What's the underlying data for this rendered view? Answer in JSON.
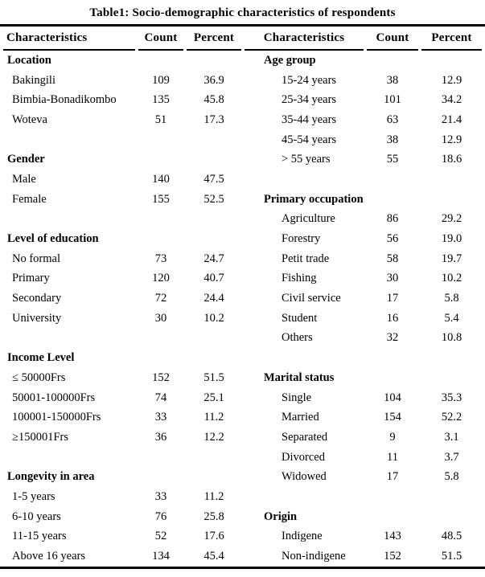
{
  "table": {
    "title": "Table1: Socio-demographic characteristics of respondents",
    "columns": [
      "Characteristics",
      "Count",
      "Percent",
      "Characteristics",
      "Count",
      "Percent"
    ],
    "left_sections": [
      {
        "header": "Location",
        "rows": [
          [
            "Bakingili",
            "109",
            "36.9"
          ],
          [
            "Bimbia-Bonadikombo",
            "135",
            "45.8"
          ],
          [
            "Woteva",
            "51",
            "17.3"
          ]
        ]
      },
      {
        "header": "Gender",
        "rows": [
          [
            "Male",
            "140",
            "47.5"
          ],
          [
            "Female",
            "155",
            "52.5"
          ]
        ]
      },
      {
        "header": "Level of education",
        "rows": [
          [
            "No formal",
            "73",
            "24.7"
          ],
          [
            "Primary",
            "120",
            "40.7"
          ],
          [
            "Secondary",
            "72",
            "24.4"
          ],
          [
            "University",
            "30",
            "10.2"
          ]
        ]
      },
      {
        "header": "Income Level",
        "rows": [
          [
            "≤ 50000Frs",
            "152",
            "51.5"
          ],
          [
            "50001-100000Frs",
            "74",
            "25.1"
          ],
          [
            "100001-150000Frs",
            "33",
            "11.2"
          ],
          [
            "≥150001Frs",
            "36",
            "12.2"
          ]
        ]
      },
      {
        "header": "Longevity in area",
        "rows": [
          [
            "1-5 years",
            "33",
            "11.2"
          ],
          [
            "6-10 years",
            "76",
            "25.8"
          ],
          [
            "11-15 years",
            "52",
            "17.6"
          ],
          [
            "Above 16 years",
            "134",
            "45.4"
          ]
        ]
      }
    ],
    "right_sections": [
      {
        "header": "Age group",
        "rows": [
          [
            "15-24 years",
            "38",
            "12.9"
          ],
          [
            "25-34 years",
            "101",
            "34.2"
          ],
          [
            "35-44 years",
            "63",
            "21.4"
          ],
          [
            "45-54 years",
            "38",
            "12.9"
          ],
          [
            "> 55 years",
            "55",
            "18.6"
          ]
        ]
      },
      {
        "header": "Primary occupation",
        "rows": [
          [
            "Agriculture",
            "86",
            "29.2"
          ],
          [
            "Forestry",
            "56",
            "19.0"
          ],
          [
            "Petit trade",
            "58",
            "19.7"
          ],
          [
            "Fishing",
            "30",
            "10.2"
          ],
          [
            "Civil service",
            "17",
            "5.8"
          ],
          [
            "Student",
            "16",
            "5.4"
          ],
          [
            "Others",
            "32",
            "10.8"
          ]
        ]
      },
      {
        "header": "Marital status",
        "rows": [
          [
            "Single",
            "104",
            "35.3"
          ],
          [
            "Married",
            "154",
            "52.2"
          ],
          [
            "Separated",
            "9",
            "3.1"
          ],
          [
            "Divorced",
            "11",
            "3.7"
          ],
          [
            "Widowed",
            "17",
            "5.8"
          ]
        ]
      },
      {
        "header": "Origin",
        "rows": [
          [
            "Indigene",
            "143",
            "48.5"
          ],
          [
            "Non-indigene",
            "152",
            "51.5"
          ]
        ]
      }
    ]
  },
  "colors": {
    "text": "#000000",
    "background": "#ffffff",
    "border": "#000000"
  }
}
